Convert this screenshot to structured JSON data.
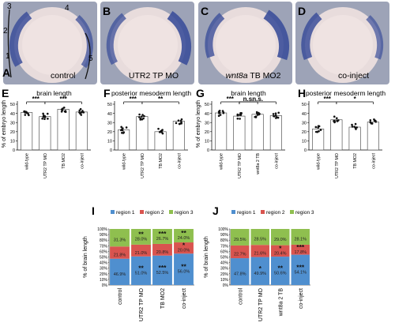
{
  "panels": {
    "A": {
      "letter": "A",
      "label": "control",
      "regions": [
        "1",
        "2",
        "3",
        "4",
        "5"
      ]
    },
    "B": {
      "letter": "B",
      "label": "UTR2 TP MO"
    },
    "C": {
      "letter": "C",
      "label_italic": "wnt8a",
      "label_rest": " TB MO2"
    },
    "D": {
      "letter": "D",
      "label": "co-inject"
    }
  },
  "colors": {
    "stain": "#3c4f9a",
    "embryo": "#e8dcdc",
    "bg": "#9da3b7",
    "region1": "#4f8fcf",
    "region2": "#d9544f",
    "region3": "#8fbf4f",
    "bar_edge": "#555555"
  },
  "chart_data": [
    {
      "letter": "E",
      "type": "bar",
      "title": "brain length",
      "ylabel": "% of embryo length",
      "ylim": [
        0,
        50
      ],
      "yticks": [
        0,
        10,
        20,
        30,
        40,
        50
      ],
      "categories": [
        "wild-type",
        "UTR2 TP MO",
        "TB MO2",
        "co-inject"
      ],
      "values": [
        41,
        36.5,
        44.5,
        41.5
      ],
      "significance": [
        {
          "from": 0,
          "to": 1,
          "label": "***"
        },
        {
          "from": 1,
          "to": 3,
          "label": "***"
        }
      ]
    },
    {
      "letter": "F",
      "type": "bar",
      "title": "posterior mesoderm length",
      "ylabel": "",
      "ylim": [
        0,
        50
      ],
      "yticks": [
        0,
        10,
        20,
        30,
        40,
        50
      ],
      "categories": [
        "wild-type",
        "UTR2 TP MO",
        "TB MO2",
        "co-inject"
      ],
      "values": [
        22,
        36.5,
        20,
        31.5
      ],
      "significance": [
        {
          "from": 0,
          "to": 1,
          "label": "***"
        },
        {
          "from": 1,
          "to": 3,
          "label": "**"
        }
      ]
    },
    {
      "letter": "G",
      "type": "bar",
      "title": "brain length",
      "ylabel": "% of embryo length",
      "ylim": [
        0,
        50
      ],
      "yticks": [
        0,
        10,
        20,
        30,
        40,
        50
      ],
      "categories": [
        "wild-type",
        "UTR2 TP MO",
        "wnt8a 2 TB",
        "co-inject"
      ],
      "values": [
        40.5,
        37,
        39,
        37.5
      ],
      "significance": [
        {
          "from": 0,
          "to": 1,
          "label": "***"
        },
        {
          "from": 1,
          "to": 2,
          "label": "n.s."
        },
        {
          "from": 1,
          "to": 3,
          "label": "n.s."
        }
      ]
    },
    {
      "letter": "H",
      "type": "bar",
      "title": "posterior mesoderm length",
      "ylabel": "",
      "ylim": [
        0,
        50
      ],
      "yticks": [
        0,
        10,
        20,
        30,
        40,
        50
      ],
      "categories": [
        "wild-type",
        "UTR2 TP MO",
        "TB MO2",
        "co-inject"
      ],
      "values": [
        23,
        33,
        25,
        30.5
      ],
      "significance": [
        {
          "from": 0,
          "to": 1,
          "label": "***"
        },
        {
          "from": 1,
          "to": 3,
          "label": "*"
        }
      ]
    },
    {
      "letter": "I",
      "type": "stacked-bar",
      "ylabel": "% of brain length",
      "ylim": [
        0,
        100
      ],
      "yticks": [
        "0%",
        "10%",
        "20%",
        "30%",
        "40%",
        "50%",
        "60%",
        "70%",
        "80%",
        "90%",
        "100%"
      ],
      "legend": [
        "region 1",
        "region 2",
        "region 3"
      ],
      "categories": [
        "control",
        "UTR2 TP MO",
        "TB MO2",
        "co-inject"
      ],
      "series": [
        {
          "name": "region 1",
          "values": [
            46.9,
            51.0,
            52.5,
            56.0
          ],
          "labels": [
            "46.9%",
            "51.0%",
            "52.5%",
            "56.0%"
          ],
          "stars": [
            "",
            "**",
            "***",
            "**"
          ]
        },
        {
          "name": "region 2",
          "values": [
            21.8,
            21.0,
            20.8,
            20.0
          ],
          "labels": [
            "21.8%",
            "21.0%",
            "20.8%",
            "20.0%"
          ],
          "stars": [
            "",
            "",
            "",
            "*"
          ]
        },
        {
          "name": "region 3",
          "values": [
            31.3,
            28.0,
            26.7,
            24.0
          ],
          "labels": [
            "31.3%",
            "28.0%",
            "26.7%",
            "24.0%"
          ],
          "stars": [
            "",
            "**",
            "***",
            "**"
          ]
        }
      ]
    },
    {
      "letter": "J",
      "type": "stacked-bar",
      "ylabel": "% of brain length",
      "ylim": [
        0,
        100
      ],
      "yticks": [
        "0%",
        "10%",
        "20%",
        "30%",
        "40%",
        "50%",
        "60%",
        "70%",
        "80%",
        "90%",
        "100%"
      ],
      "legend": [
        "region 1",
        "region 2",
        "region 3"
      ],
      "categories": [
        "control",
        "UTR2 TP MO",
        "wnt8a 2 TB",
        "co-inject"
      ],
      "series": [
        {
          "name": "region 1",
          "values": [
            47.8,
            49.9,
            50.6,
            54.1
          ],
          "labels": [
            "47.8%",
            "49.9%",
            "50.6%",
            "54.1%"
          ],
          "stars": [
            "",
            "*",
            "**",
            "***"
          ]
        },
        {
          "name": "region 2",
          "values": [
            22.7,
            21.6,
            20.4,
            17.8
          ],
          "labels": [
            "22.7%",
            "21.6%",
            "20.4%",
            "17.8%"
          ],
          "stars": [
            "",
            "",
            "*",
            "***"
          ]
        },
        {
          "name": "region 3",
          "values": [
            29.5,
            28.5,
            29.0,
            28.1
          ],
          "labels": [
            "29.5%",
            "28.5%",
            "29.0%",
            "28.1%"
          ],
          "stars": [
            "",
            "",
            "",
            ""
          ]
        }
      ]
    }
  ]
}
